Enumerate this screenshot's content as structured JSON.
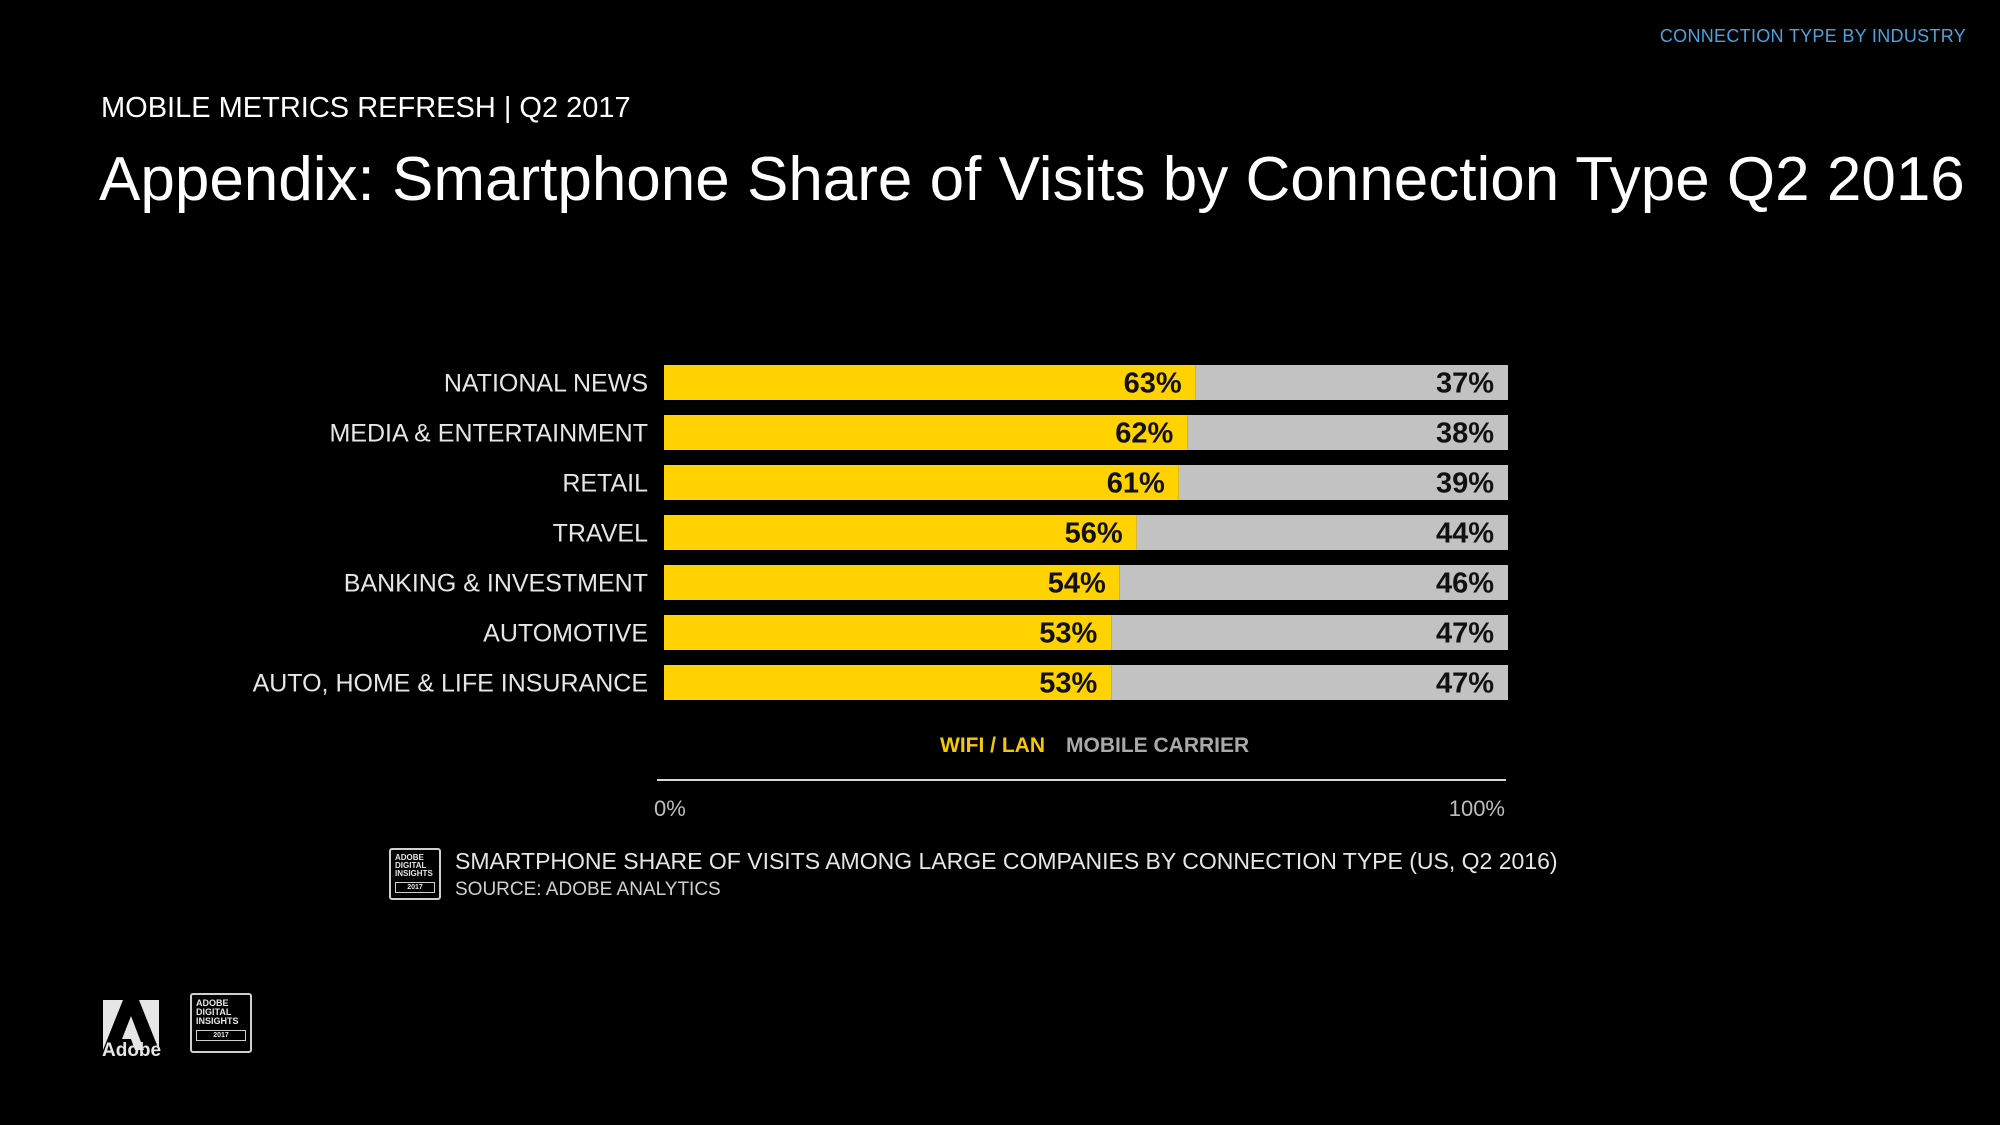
{
  "header": {
    "section_tag": "CONNECTION TYPE BY INDUSTRY",
    "kicker": "MOBILE METRICS REFRESH | Q2 2017",
    "title": "Appendix: Smartphone Share of Visits by Connection Type Q2 2016"
  },
  "chart_data": {
    "type": "bar",
    "orientation": "horizontal",
    "stacked": true,
    "categories": [
      "NATIONAL NEWS",
      "MEDIA & ENTERTAINMENT",
      "RETAIL",
      "TRAVEL",
      "BANKING & INVESTMENT",
      "AUTOMOTIVE",
      "AUTO, HOME & LIFE INSURANCE"
    ],
    "series": [
      {
        "name": "WIFI / LAN",
        "color": "#ffd200",
        "values": [
          63,
          62,
          61,
          56,
          54,
          53,
          53
        ]
      },
      {
        "name": "MOBILE CARRIER",
        "color": "#c2c2c2",
        "values": [
          37,
          38,
          39,
          44,
          46,
          47,
          47
        ]
      }
    ],
    "value_suffix": "%",
    "xlim": [
      0,
      100
    ],
    "x_ticks": [
      "0%",
      "100%"
    ],
    "legend": [
      "WIFI / LAN",
      "MOBILE CARRIER"
    ],
    "legend_position": "bottom"
  },
  "caption": {
    "text": "SMARTPHONE SHARE OF VISITS AMONG LARGE COMPANIES BY CONNECTION TYPE (US, Q2 2016)",
    "source": "SOURCE: ADOBE ANALYTICS"
  },
  "badge": {
    "line1": "ADOBE",
    "line2": "DIGITAL",
    "line3": "INSIGHTS",
    "year": "2017"
  },
  "footer": {
    "brand": "Adobe"
  }
}
